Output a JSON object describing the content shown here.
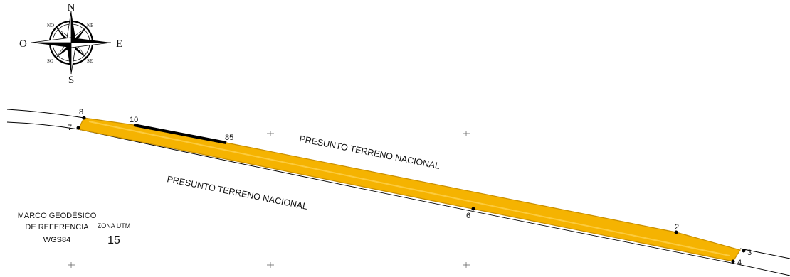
{
  "compass": {
    "north": "N",
    "south": "S",
    "east": "E",
    "west": "O",
    "northeast": "NE",
    "northwest": "NO",
    "southeast": "SE",
    "southwest": "SO"
  },
  "labels": {
    "land_upper": "PRESUNTO TERRENO NACIONAL",
    "land_lower": "PRESUNTO TERRENO NACIONAL"
  },
  "reference": {
    "line1": "MARCO GEODÉSICO",
    "line2": "DE REFERENCIA",
    "line3": "WGS84",
    "zone_label": "ZONA UTM",
    "zone_value": "15"
  },
  "vertices": {
    "v8": "8",
    "v7": "7",
    "v10": "10",
    "v85": "85",
    "v6": "6",
    "v2": "2",
    "v3": "3",
    "v4": "4"
  },
  "colors": {
    "parcel_fill": "#f5b301",
    "parcel_edge": "#c98f00",
    "line": "#000000"
  }
}
